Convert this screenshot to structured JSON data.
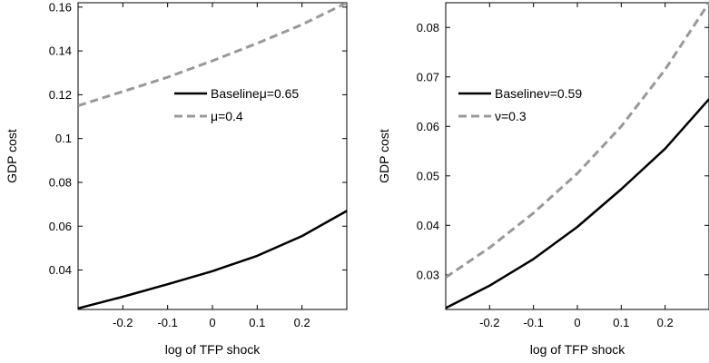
{
  "chart_data": [
    {
      "type": "line",
      "xlabel": "log of TFP shock",
      "ylabel": "GDP cost",
      "xlim": [
        -0.3,
        0.3
      ],
      "ylim": [
        0.022,
        0.162
      ],
      "xticks": [
        -0.2,
        -0.1,
        0,
        0.1,
        0.2
      ],
      "xtick_labels": [
        "-0.2",
        "-0.1",
        "0",
        "0.1",
        "0.2"
      ],
      "yticks": [
        0.04,
        0.06,
        0.08,
        0.1,
        0.12,
        0.14,
        0.16
      ],
      "ytick_labels": [
        "0.04",
        "0.06",
        "0.08",
        "0.1",
        "0.12",
        "0.14",
        "0.16"
      ],
      "grid": false,
      "legend_position": "upper-right",
      "series": [
        {
          "name": "Baselineμ=0.65",
          "style": "solid",
          "color": "#000000",
          "x": [
            -0.3,
            -0.2,
            -0.1,
            0,
            0.1,
            0.2,
            0.3
          ],
          "y": [
            0.0225,
            0.0278,
            0.0335,
            0.0395,
            0.0465,
            0.0555,
            0.067
          ]
        },
        {
          "name": "μ=0.4",
          "style": "dashed",
          "color": "#999999",
          "x": [
            -0.3,
            -0.2,
            -0.1,
            0,
            0.1,
            0.2,
            0.3
          ],
          "y": [
            0.115,
            0.1215,
            0.128,
            0.1355,
            0.1435,
            0.152,
            0.162
          ]
        }
      ]
    },
    {
      "type": "line",
      "xlabel": "log of TFP shock",
      "ylabel": "GDP cost",
      "xlim": [
        -0.3,
        0.3
      ],
      "ylim": [
        0.023,
        0.085
      ],
      "xticks": [
        -0.2,
        -0.1,
        0,
        0.1,
        0.2
      ],
      "xtick_labels": [
        "-0.2",
        "-0.1",
        "0",
        "0.1",
        "0.2"
      ],
      "yticks": [
        0.03,
        0.04,
        0.05,
        0.06,
        0.07,
        0.08
      ],
      "ytick_labels": [
        "0.03",
        "0.04",
        "0.05",
        "0.06",
        "0.07",
        "0.08"
      ],
      "grid": false,
      "legend_position": "upper-left",
      "series": [
        {
          "name": "Baselineν=0.59",
          "style": "solid",
          "color": "#000000",
          "x": [
            -0.3,
            -0.2,
            -0.1,
            0,
            0.1,
            0.2,
            0.3
          ],
          "y": [
            0.0233,
            0.0278,
            0.0332,
            0.0397,
            0.0473,
            0.0555,
            0.0655
          ]
        },
        {
          "name": "ν=0.3",
          "style": "dashed",
          "color": "#999999",
          "x": [
            -0.3,
            -0.2,
            -0.1,
            0,
            0.1,
            0.2,
            0.3
          ],
          "y": [
            0.0295,
            0.0355,
            0.0425,
            0.0505,
            0.06,
            0.0715,
            0.085
          ]
        }
      ]
    }
  ]
}
